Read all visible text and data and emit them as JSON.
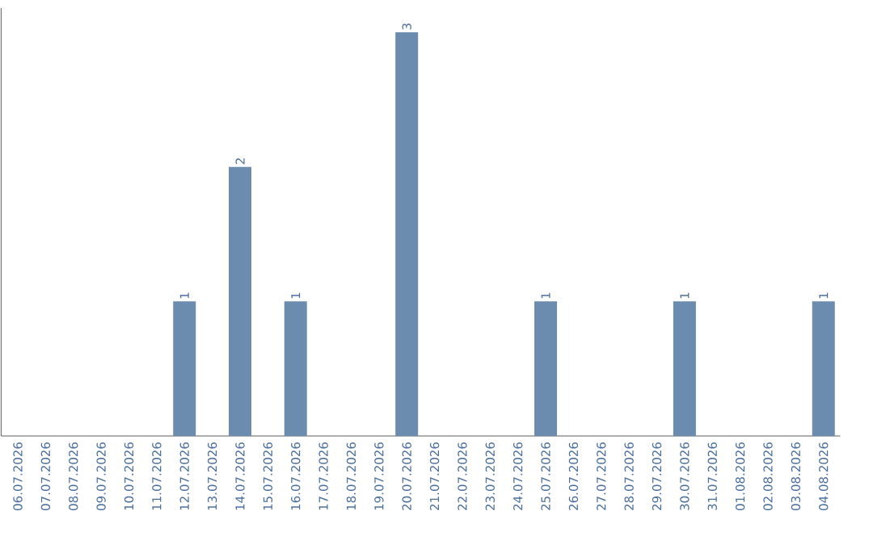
{
  "chart_data": {
    "type": "bar",
    "categories": [
      "06.07.2026",
      "07.07.2026",
      "08.07.2026",
      "09.07.2026",
      "10.07.2026",
      "11.07.2026",
      "12.07.2026",
      "13.07.2026",
      "14.07.2026",
      "15.07.2026",
      "16.07.2026",
      "17.07.2026",
      "18.07.2026",
      "19.07.2026",
      "20.07.2026",
      "21.07.2026",
      "22.07.2026",
      "23.07.2026",
      "24.07.2026",
      "25.07.2026",
      "26.07.2026",
      "27.07.2026",
      "28.07.2026",
      "29.07.2026",
      "30.07.2026",
      "31.07.2026",
      "01.08.2026",
      "02.08.2026",
      "03.08.2026",
      "04.08.2026"
    ],
    "values": [
      0,
      0,
      0,
      0,
      0,
      0,
      1,
      0,
      2,
      0,
      1,
      0,
      0,
      0,
      3,
      0,
      0,
      0,
      0,
      1,
      0,
      0,
      0,
      0,
      1,
      0,
      0,
      0,
      0,
      1
    ],
    "value_labels": [
      null,
      null,
      null,
      null,
      null,
      null,
      "1",
      null,
      "2",
      null,
      "1",
      null,
      null,
      null,
      "3",
      null,
      null,
      null,
      null,
      "1",
      null,
      null,
      null,
      null,
      "1",
      null,
      null,
      null,
      null,
      "1"
    ],
    "color": "#6b8cae"
  }
}
